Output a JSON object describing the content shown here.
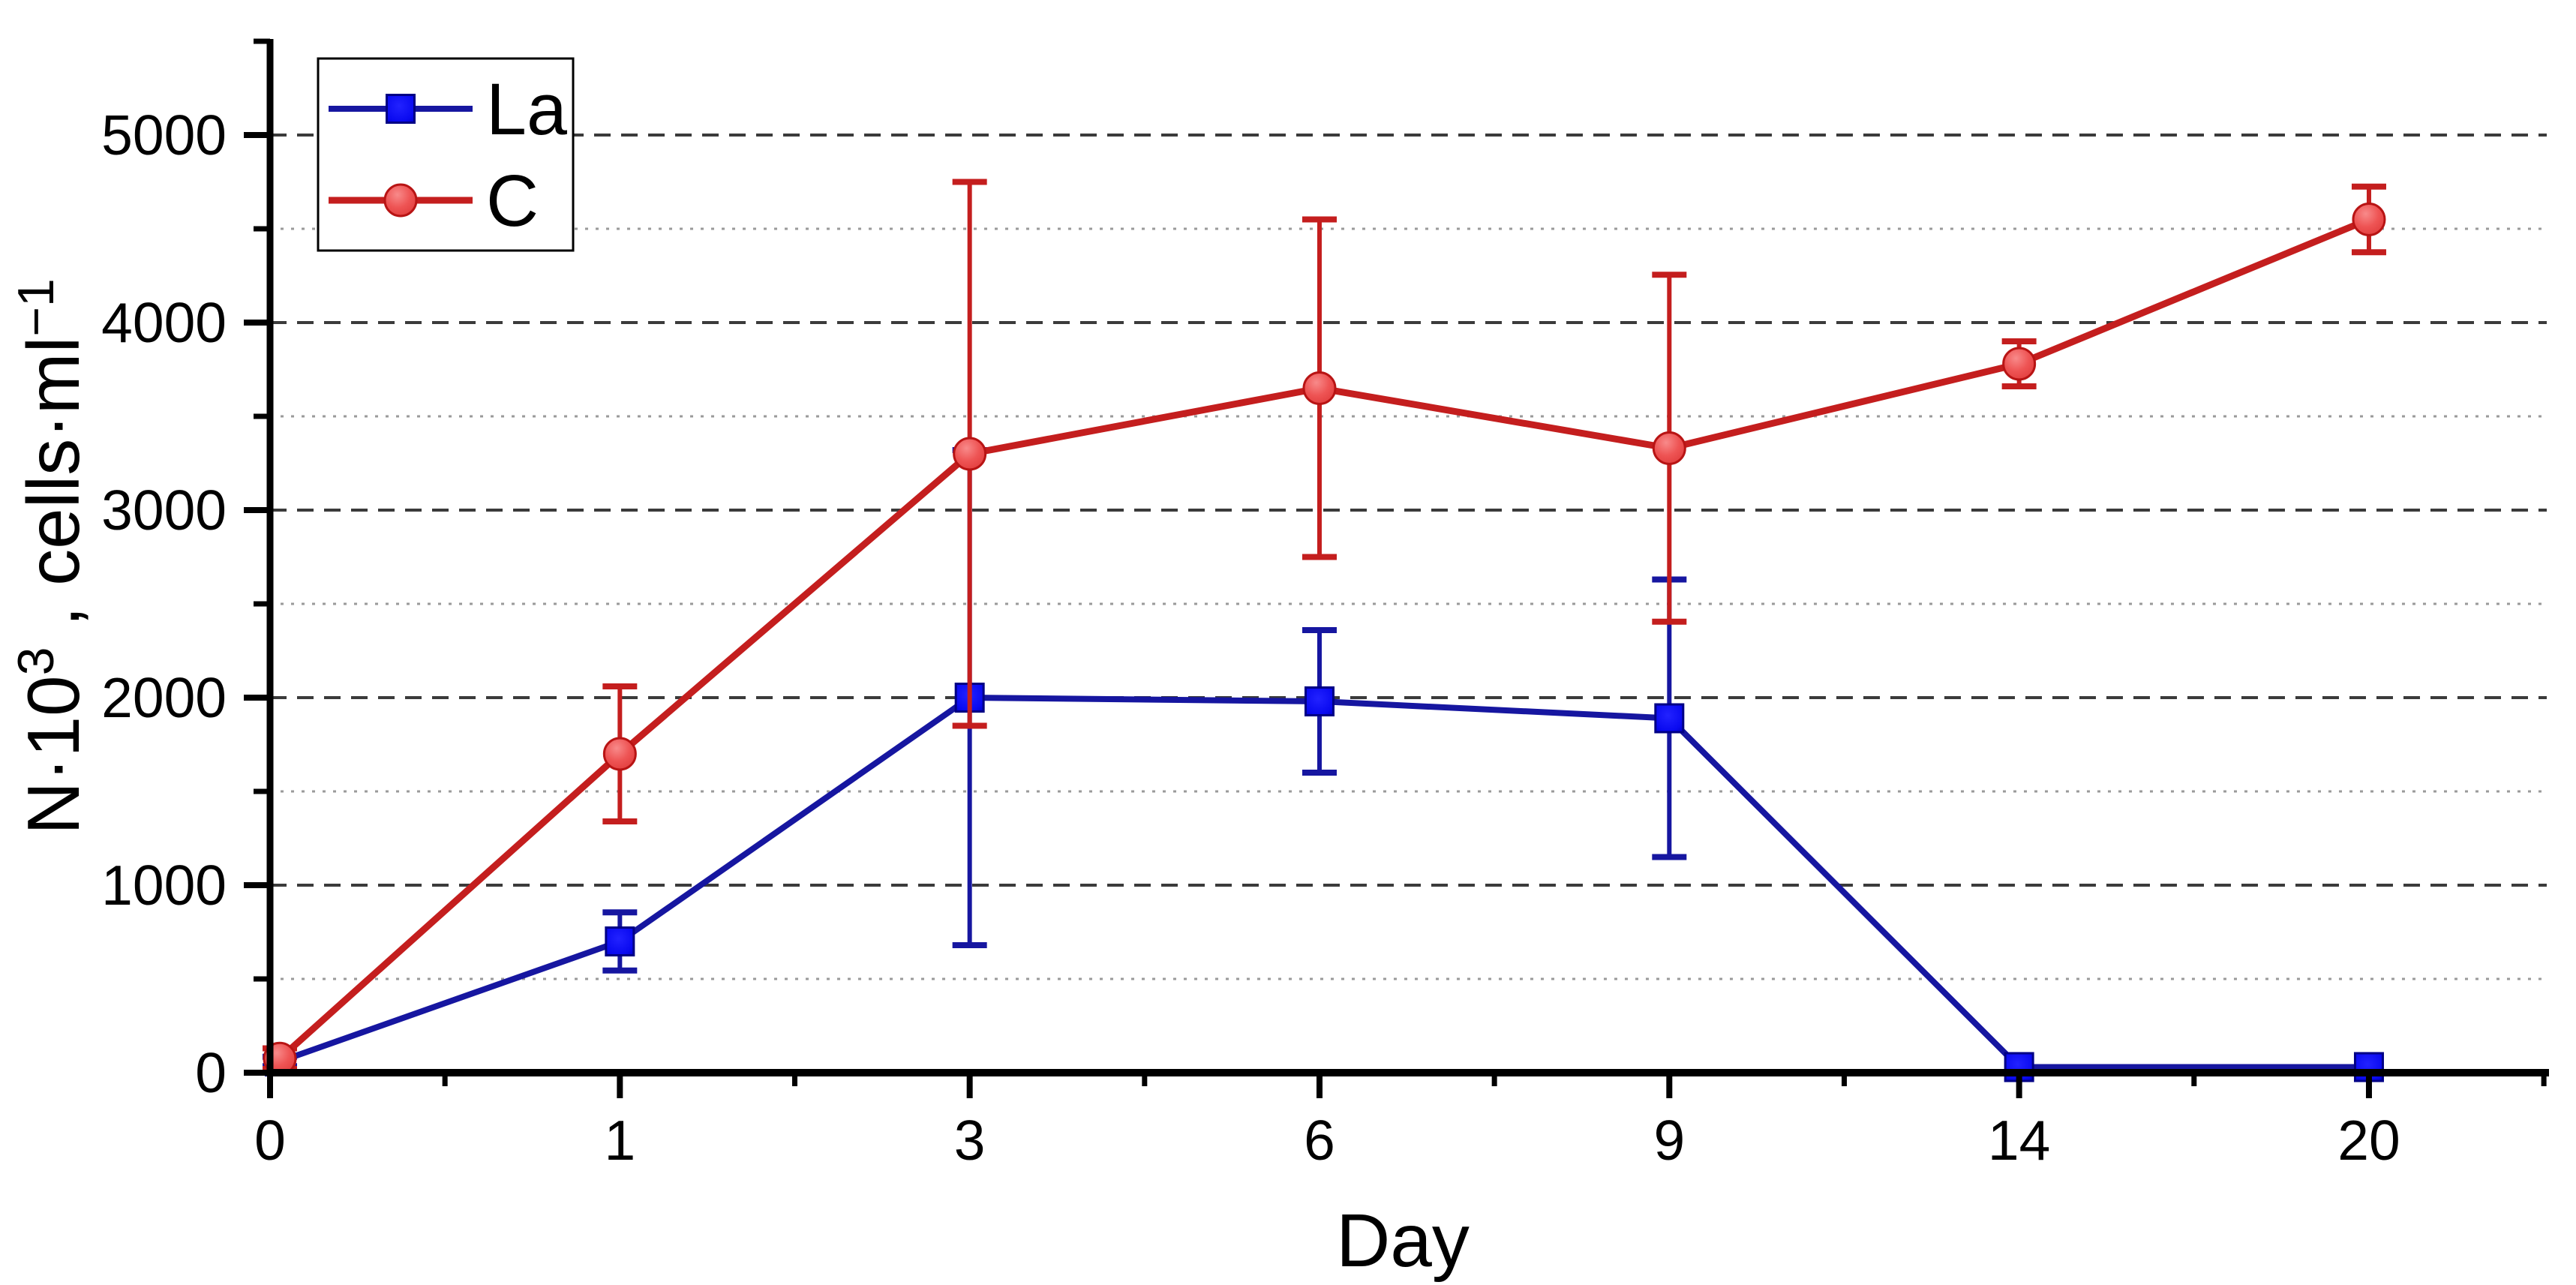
{
  "chart_data": {
    "type": "line",
    "title": "",
    "xlabel": "Day",
    "ylabel": "N·10³ , cells·ml⁻¹",
    "ylabel_parts": [
      {
        "t": "N·10",
        "sup": false
      },
      {
        "t": "3",
        "sup": true
      },
      {
        "t": " , cells·ml",
        "sup": false
      },
      {
        "t": "−1",
        "sup": true
      }
    ],
    "categories": [
      "0",
      "1",
      "3",
      "6",
      "9",
      "14",
      "20"
    ],
    "y_axis": {
      "min": 0,
      "max": 5500,
      "major_step": 1000,
      "minor_step": 500,
      "tick_labels": [
        "0",
        "1000",
        "2000",
        "3000",
        "4000",
        "5000"
      ]
    },
    "grid": {
      "major_style": "dashed",
      "minor_style": "dotted",
      "vertical": false
    },
    "legend": {
      "position": "top-left",
      "entries": [
        "La",
        "C"
      ]
    },
    "series": [
      {
        "name": "La",
        "marker": "square",
        "line_color": "#1616a0",
        "fill_color": "#0a0af0",
        "edge_color": "#000085",
        "values": [
          60,
          700,
          2000,
          1980,
          1890,
          30,
          30
        ],
        "errors": [
          25,
          155,
          1320,
          380,
          740,
          0,
          0
        ]
      },
      {
        "name": "C",
        "marker": "circle",
        "line_color": "#c41e1e",
        "fill_color": "#ee5454",
        "edge_color": "#b81414",
        "values": [
          75,
          1700,
          3300,
          3650,
          3330,
          3780,
          4550
        ],
        "errors": [
          55,
          360,
          1450,
          900,
          925,
          120,
          175
        ]
      }
    ],
    "colors": {
      "axis": "#000000",
      "major_grid": "#3b3b3b",
      "minor_grid": "#9a9a9a",
      "background": "#ffffff"
    }
  }
}
